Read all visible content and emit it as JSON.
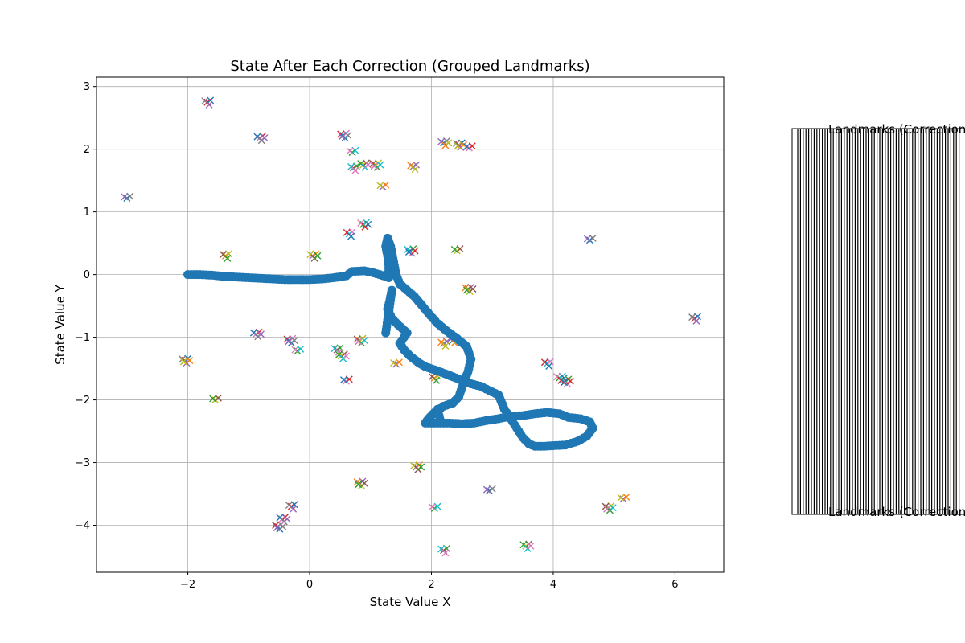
{
  "chart_data": {
    "type": "scatter",
    "title": "State After Each Correction (Grouped Landmarks)",
    "xlabel": "State Value X",
    "ylabel": "State Value Y",
    "xlim": [
      -3.5,
      6.8
    ],
    "ylim": [
      -4.75,
      3.15
    ],
    "xticks": [
      -2,
      0,
      2,
      4,
      6
    ],
    "yticks": [
      -4,
      -3,
      -2,
      -1,
      0,
      1,
      2,
      3
    ],
    "xtick_labels": [
      "−2",
      "0",
      "2",
      "4",
      "6"
    ],
    "ytick_labels": [
      "−4",
      "−3",
      "−2",
      "−1",
      "0",
      "1",
      "2",
      "3"
    ],
    "grid": true,
    "legend_placement": "outside right",
    "legend_text": "Landmarks (Correction ...)",
    "series": [
      {
        "kind": "trajectory",
        "marker": "circle",
        "color": "#1f77b4",
        "points": [
          [
            -2.0,
            0.0
          ],
          [
            -1.8,
            0.0
          ],
          [
            -1.6,
            -0.01
          ],
          [
            -1.4,
            -0.03
          ],
          [
            -1.2,
            -0.04
          ],
          [
            -1.0,
            -0.05
          ],
          [
            -0.8,
            -0.06
          ],
          [
            -0.6,
            -0.07
          ],
          [
            -0.4,
            -0.08
          ],
          [
            -0.2,
            -0.08
          ],
          [
            0.0,
            -0.08
          ],
          [
            0.2,
            -0.07
          ],
          [
            0.4,
            -0.05
          ],
          [
            0.6,
            -0.02
          ],
          [
            0.7,
            0.05
          ],
          [
            0.9,
            0.06
          ],
          [
            1.0,
            0.04
          ],
          [
            1.15,
            0.0
          ],
          [
            1.3,
            -0.05
          ],
          [
            1.3,
            0.15
          ],
          [
            1.28,
            0.3
          ],
          [
            1.25,
            0.45
          ],
          [
            1.28,
            0.58
          ],
          [
            1.33,
            0.45
          ],
          [
            1.38,
            0.2
          ],
          [
            1.42,
            0.0
          ],
          [
            1.48,
            -0.15
          ],
          [
            1.6,
            -0.25
          ],
          [
            1.72,
            -0.35
          ],
          [
            1.85,
            -0.5
          ],
          [
            1.98,
            -0.65
          ],
          [
            2.1,
            -0.78
          ],
          [
            2.25,
            -0.9
          ],
          [
            2.42,
            -1.02
          ],
          [
            2.58,
            -1.15
          ],
          [
            2.65,
            -1.35
          ],
          [
            2.6,
            -1.55
          ],
          [
            2.52,
            -1.75
          ],
          [
            2.45,
            -1.95
          ],
          [
            2.35,
            -2.05
          ],
          [
            2.2,
            -2.1
          ],
          [
            2.05,
            -2.2
          ],
          [
            1.95,
            -2.3
          ],
          [
            1.9,
            -2.37
          ],
          [
            2.1,
            -2.37
          ],
          [
            2.3,
            -2.37
          ],
          [
            2.5,
            -2.38
          ],
          [
            2.7,
            -2.37
          ],
          [
            2.9,
            -2.33
          ],
          [
            3.1,
            -2.3
          ],
          [
            3.3,
            -2.26
          ],
          [
            3.5,
            -2.25
          ],
          [
            3.7,
            -2.22
          ],
          [
            3.9,
            -2.2
          ],
          [
            4.1,
            -2.22
          ],
          [
            4.25,
            -2.28
          ],
          [
            4.45,
            -2.3
          ],
          [
            4.6,
            -2.35
          ],
          [
            4.65,
            -2.45
          ],
          [
            4.55,
            -2.58
          ],
          [
            4.4,
            -2.66
          ],
          [
            4.2,
            -2.72
          ],
          [
            4.0,
            -2.73
          ],
          [
            3.85,
            -2.74
          ],
          [
            3.7,
            -2.74
          ],
          [
            3.6,
            -2.7
          ],
          [
            3.5,
            -2.6
          ],
          [
            3.4,
            -2.45
          ],
          [
            3.3,
            -2.3
          ],
          [
            3.2,
            -2.15
          ],
          [
            3.1,
            -1.92
          ],
          [
            2.95,
            -1.85
          ],
          [
            2.8,
            -1.78
          ],
          [
            2.6,
            -1.73
          ],
          [
            2.4,
            -1.65
          ],
          [
            2.22,
            -1.58
          ],
          [
            2.05,
            -1.52
          ],
          [
            1.9,
            -1.47
          ],
          [
            1.78,
            -1.4
          ],
          [
            1.65,
            -1.3
          ],
          [
            1.55,
            -1.2
          ],
          [
            1.48,
            -1.1
          ],
          [
            1.55,
            -1.0
          ],
          [
            1.6,
            -0.93
          ],
          [
            1.45,
            -0.8
          ],
          [
            1.35,
            -0.7
          ],
          [
            1.28,
            -0.55
          ],
          [
            1.32,
            -0.4
          ],
          [
            1.35,
            -0.25
          ],
          [
            1.25,
            -0.93
          ],
          [
            2.1,
            -2.15
          ],
          [
            2.15,
            -2.35
          ]
        ]
      },
      {
        "kind": "landmarks",
        "marker": "x",
        "palette": [
          "#1f77b4",
          "#ff7f0e",
          "#2ca02c",
          "#d62728",
          "#9467bd",
          "#8c564b",
          "#e377c2",
          "#7f7f7f",
          "#bcbd22",
          "#17becf"
        ],
        "clusters": [
          [
            -3.0,
            1.22
          ],
          [
            -1.68,
            2.75
          ],
          [
            -0.82,
            2.18
          ],
          [
            0.55,
            2.22
          ],
          [
            0.7,
            1.95
          ],
          [
            0.72,
            1.7
          ],
          [
            0.88,
            1.75
          ],
          [
            1.08,
            1.75
          ],
          [
            1.2,
            1.4
          ],
          [
            1.7,
            1.72
          ],
          [
            2.2,
            2.1
          ],
          [
            2.45,
            2.07
          ],
          [
            2.62,
            2.02
          ],
          [
            0.65,
            0.65
          ],
          [
            0.88,
            0.8
          ],
          [
            1.65,
            0.38
          ],
          [
            2.42,
            0.38
          ],
          [
            -1.38,
            0.3
          ],
          [
            0.05,
            0.3
          ],
          [
            2.6,
            -0.23
          ],
          [
            4.6,
            0.55
          ],
          [
            6.32,
            -0.7
          ],
          [
            -0.88,
            -0.95
          ],
          [
            -0.33,
            -1.05
          ],
          [
            -0.2,
            -1.22
          ],
          [
            0.45,
            -1.2
          ],
          [
            0.52,
            -1.3
          ],
          [
            0.82,
            -1.05
          ],
          [
            1.42,
            -1.43
          ],
          [
            2.2,
            -1.1
          ],
          [
            2.35,
            -1.05
          ],
          [
            -2.05,
            -1.37
          ],
          [
            0.6,
            -1.7
          ],
          [
            3.9,
            -1.42
          ],
          [
            4.1,
            -1.65
          ],
          [
            4.2,
            -1.7
          ],
          [
            -1.55,
            -2.0
          ],
          [
            2.05,
            -1.65
          ],
          [
            1.75,
            -3.07
          ],
          [
            0.82,
            -3.33
          ],
          [
            2.95,
            -3.45
          ],
          [
            -0.3,
            -3.7
          ],
          [
            -0.45,
            -3.9
          ],
          [
            -0.52,
            -4.02
          ],
          [
            2.05,
            -3.73
          ],
          [
            2.2,
            -4.4
          ],
          [
            3.55,
            -4.33
          ],
          [
            4.9,
            -3.72
          ],
          [
            5.15,
            -3.58
          ]
        ]
      }
    ]
  }
}
